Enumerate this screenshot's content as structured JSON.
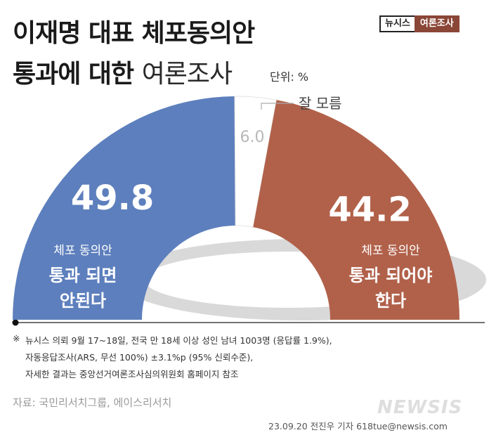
{
  "title": {
    "line1": "이재명 대표 체포동의안",
    "line2_bold": "통과에 대한",
    "line2_light": "여론조사"
  },
  "unit": "단위: %",
  "badge": {
    "left": "뉴시스",
    "right": "여론조사"
  },
  "chart_data": {
    "type": "pie",
    "subtype": "semicircle-donut",
    "segments": [
      {
        "value": 49.8,
        "value_label": "49.8",
        "label_small": "체포 동의안",
        "label_bold": [
          "통과 되면",
          "안된다"
        ],
        "color": "#5d7fbd"
      },
      {
        "value": 6.0,
        "value_label": "6.0",
        "label_small": "잘 모름",
        "label_bold": [],
        "color": "#ffffff"
      },
      {
        "value": 44.2,
        "value_label": "44.2",
        "label_small": "체포 동의안",
        "label_bold": [
          "통과 되어야",
          "한다"
        ],
        "color": "#b1614a"
      }
    ]
  },
  "footnote": {
    "mark": "※",
    "lines": [
      "뉴시스 의뢰 9월 17~18일, 전국 만 18세 이상 성인 남녀 1003명 (응답률 1.9%),",
      "자동응답조사(ARS, 무선 100%) ±3.1%p (95% 신뢰수준),",
      "자세한 결과는 중앙선거여론조사심의위원회 홈페이지 참조"
    ]
  },
  "source": "자료: 국민리서치그룹, 에이스리서치",
  "credit": "23.09.20 전진우 기자 618tue@newsis.com",
  "watermark": "NEWSIS",
  "colors": {
    "background": "#ffffff",
    "agree": "#b1614a",
    "disagree": "#5d7fbd",
    "unknown": "#ffffff"
  }
}
